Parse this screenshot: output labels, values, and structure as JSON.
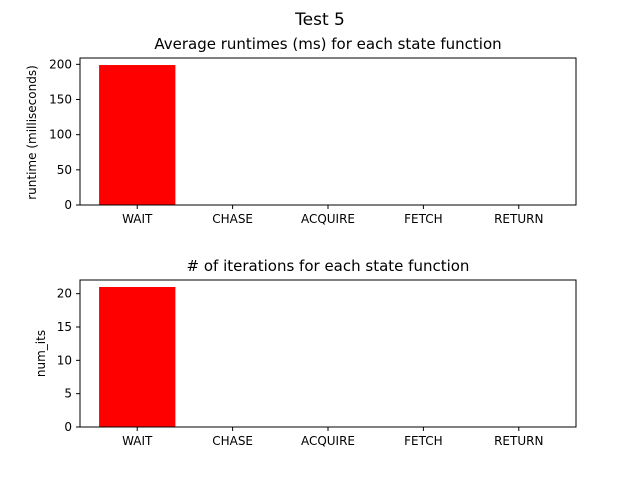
{
  "figure": {
    "suptitle": "Test 5"
  },
  "chart_data": [
    {
      "type": "bar",
      "title": "Average runtimes (ms) for each state function",
      "xlabel": "",
      "ylabel": "runtime (milliseconds)",
      "categories": [
        "WAIT",
        "CHASE",
        "ACQUIRE",
        "FETCH",
        "RETURN"
      ],
      "values": [
        199,
        0,
        0,
        0,
        0
      ],
      "ylim": [
        0,
        209
      ],
      "yticks": [
        0,
        50,
        100,
        150,
        200
      ],
      "bar_color": "#ff0000",
      "grid": false,
      "legend": "none"
    },
    {
      "type": "bar",
      "title": "# of iterations for each state function",
      "xlabel": "",
      "ylabel": "num_its",
      "categories": [
        "WAIT",
        "CHASE",
        "ACQUIRE",
        "FETCH",
        "RETURN"
      ],
      "values": [
        21,
        0,
        0,
        0,
        0
      ],
      "ylim": [
        0,
        22.05
      ],
      "yticks": [
        0,
        5,
        10,
        15,
        20
      ],
      "bar_color": "#ff0000",
      "grid": false,
      "legend": "none"
    }
  ]
}
